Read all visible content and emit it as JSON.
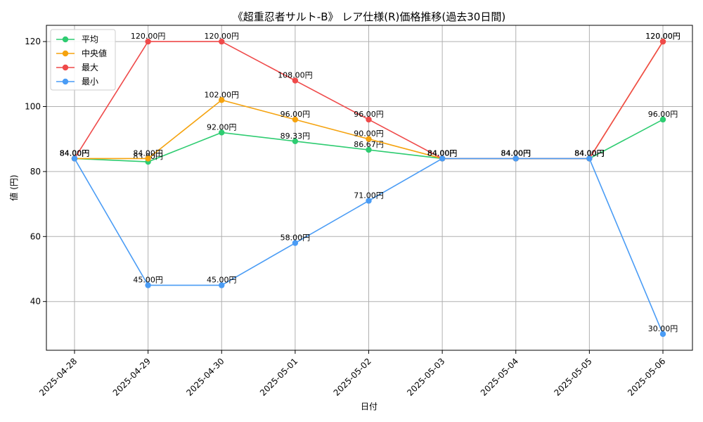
{
  "chart_data": {
    "type": "line",
    "title": "《超重忍者サルト-B》 レア仕様(R)価格推移(過去30日間)",
    "xlabel": "日付",
    "ylabel": "値 (円)",
    "categories": [
      "2025-04-28",
      "2025-04-29",
      "2025-04-30",
      "2025-05-01",
      "2025-05-02",
      "2025-05-03",
      "2025-05-04",
      "2025-05-05",
      "2025-05-06"
    ],
    "ylim": [
      25,
      125
    ],
    "yticks": [
      40,
      60,
      80,
      100,
      120
    ],
    "grid": true,
    "legend_position": "top-left",
    "series": [
      {
        "name": "平均",
        "color": "#2ecc71",
        "values": [
          84.0,
          83.0,
          92.0,
          89.33,
          86.67,
          84.0,
          84.0,
          84.0,
          96.0
        ],
        "labels": [
          "84.00円",
          "83.00円",
          "92.00円",
          "89.33円",
          "86.67円",
          "84.00円",
          "84.00円",
          "84.00円",
          "96.00円"
        ]
      },
      {
        "name": "中央値",
        "color": "#f5a30f",
        "values": [
          84.0,
          84.0,
          102.0,
          96.0,
          90.0,
          84.0,
          84.0,
          84.0,
          120.0
        ],
        "labels": [
          "84.00円",
          "84.00円",
          "102.00円",
          "96.00円",
          "90.00円",
          "84.00円",
          "84.00円",
          "84.00円",
          "120.00円"
        ]
      },
      {
        "name": "最大",
        "color": "#ef4a4a",
        "values": [
          84.0,
          120.0,
          120.0,
          108.0,
          96.0,
          84.0,
          84.0,
          84.0,
          120.0
        ],
        "labels": [
          "84.00円",
          "120.00円",
          "120.00円",
          "108.00円",
          "96.00円",
          "84.00円",
          "84.00円",
          "84.00円",
          "120.00円"
        ]
      },
      {
        "name": "最小",
        "color": "#4a9cf5",
        "values": [
          84.0,
          45.0,
          45.0,
          58.0,
          71.0,
          84.0,
          84.0,
          84.0,
          30.0
        ],
        "labels": [
          "84.00円",
          "45.00円",
          "45.00円",
          "58.00円",
          "71.00円",
          "84.00円",
          "84.00円",
          "84.00円",
          "30.00円"
        ]
      }
    ]
  }
}
